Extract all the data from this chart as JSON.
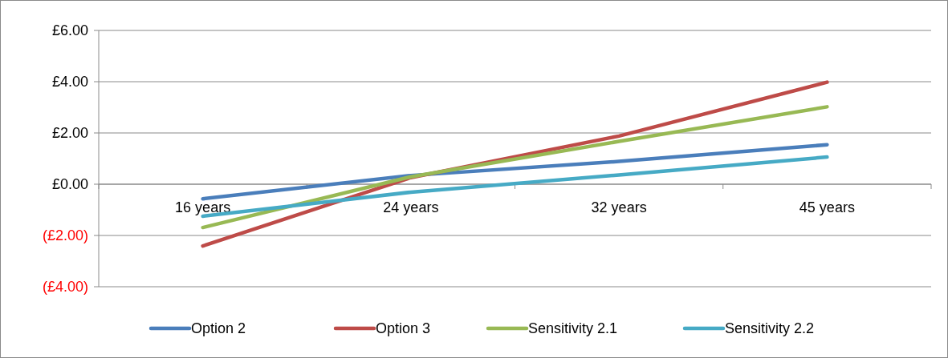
{
  "chart_data": {
    "type": "line",
    "categories": [
      "16 years",
      "24 years",
      "32 years",
      "45 years"
    ],
    "series": [
      {
        "name": "Option 2",
        "color": "#4a7ebb",
        "values": [
          -0.57,
          0.34,
          0.89,
          1.54
        ]
      },
      {
        "name": "Option 3",
        "color": "#be4b48",
        "values": [
          -2.41,
          0.26,
          1.88,
          3.98
        ]
      },
      {
        "name": "Sensitivity 2.1",
        "color": "#98b954",
        "values": [
          -1.69,
          0.29,
          1.67,
          3.02
        ]
      },
      {
        "name": "Sensitivity 2.2",
        "color": "#46aac5",
        "values": [
          -1.25,
          -0.31,
          0.36,
          1.06
        ]
      }
    ],
    "ylim": [
      -4,
      6
    ],
    "yticks": [
      {
        "value": -4,
        "label": "(£4.00)"
      },
      {
        "value": -2,
        "label": "(£2.00)"
      },
      {
        "value": 0,
        "label": "£0.00"
      },
      {
        "value": 2,
        "label": "£2.00"
      },
      {
        "value": 4,
        "label": "£4.00"
      },
      {
        "value": 6,
        "label": "£6.00"
      }
    ],
    "grid": "y",
    "legend": "bottom",
    "marker": "none",
    "line_style": "solid"
  }
}
